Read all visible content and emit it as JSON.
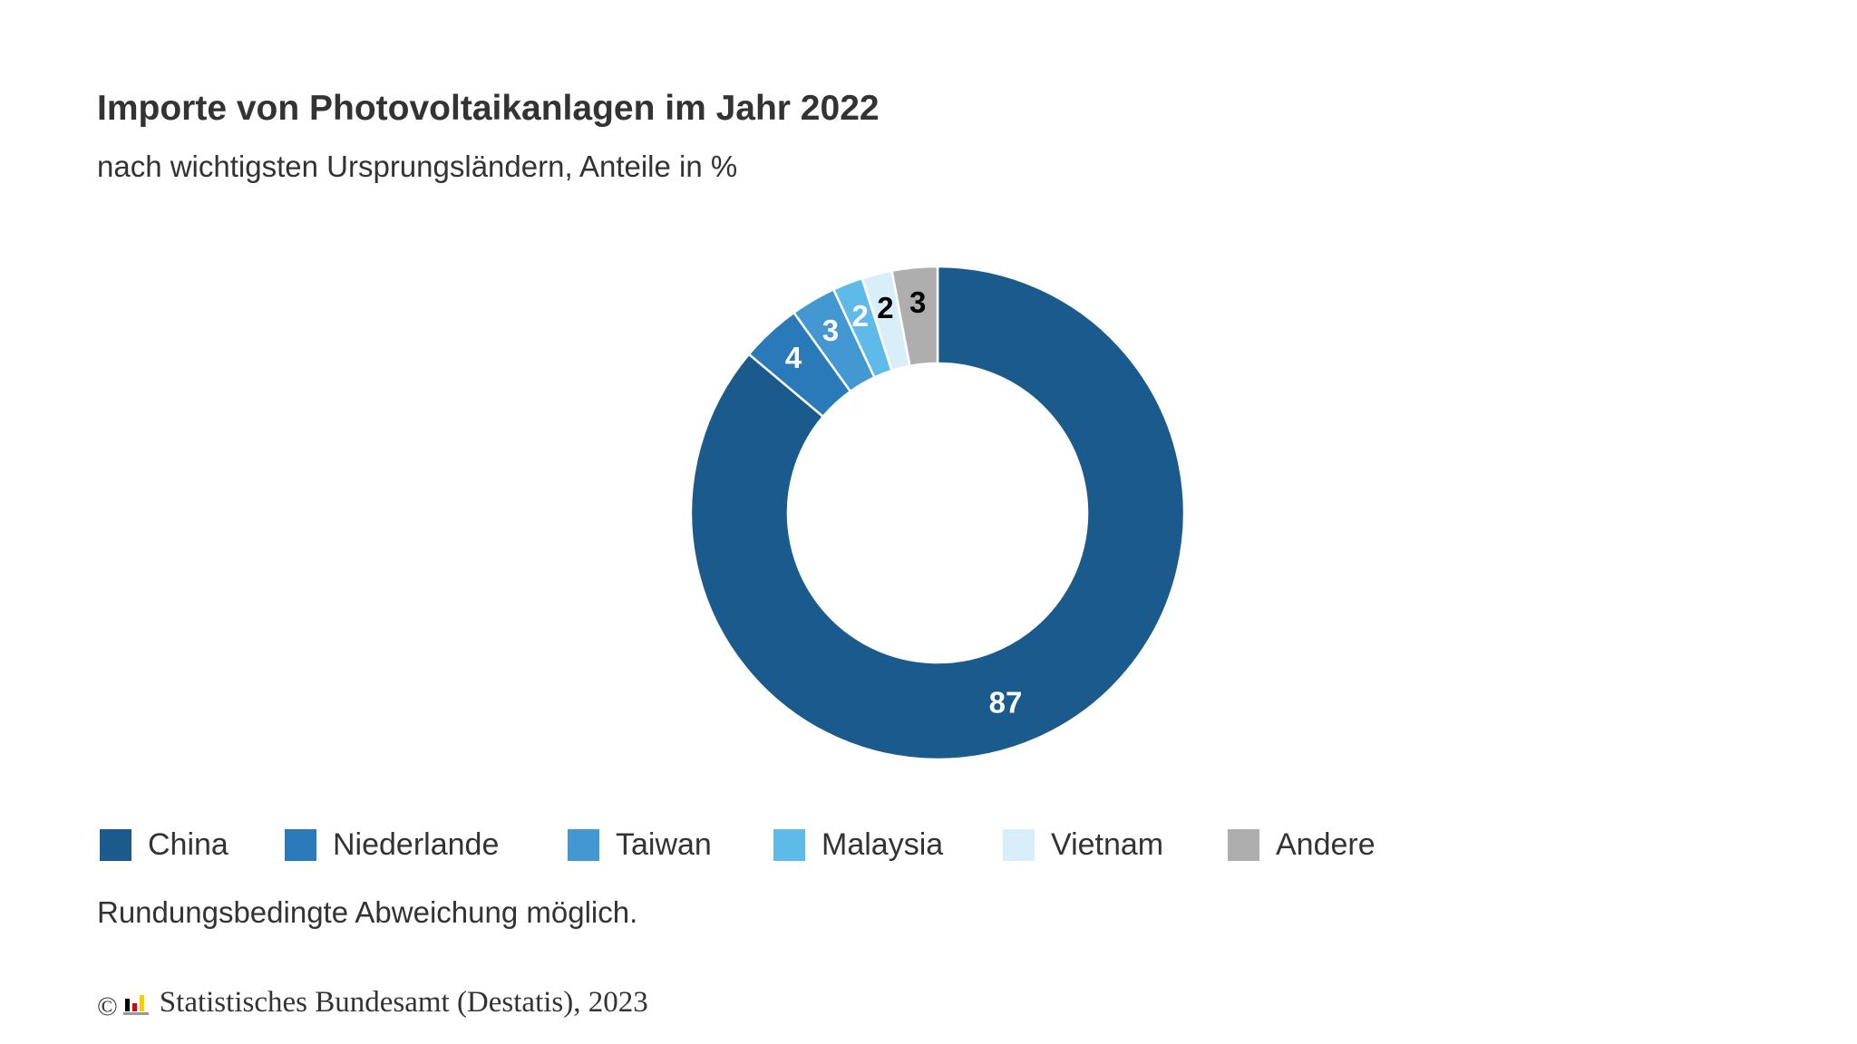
{
  "header": {
    "title": "Importe von Photovoltaikanlagen im Jahr 2022",
    "subtitle": "nach wichtigsten Ursprungsländern, Anteile in %"
  },
  "chart_data": {
    "type": "pie",
    "variant": "donut",
    "title": "Importe von Photovoltaikanlagen im Jahr 2022",
    "subtitle": "nach wichtigsten Ursprungsländern, Anteile in %",
    "categories": [
      "China",
      "Niederlande",
      "Taiwan",
      "Malaysia",
      "Vietnam",
      "Andere"
    ],
    "values": [
      87,
      4,
      3,
      2,
      2,
      3
    ],
    "colors": [
      "#1b5a8c",
      "#2a7aba",
      "#4398d1",
      "#5ebae8",
      "#d8eef9",
      "#aeaeae"
    ],
    "label_colors": [
      "#ffffff",
      "#ffffff",
      "#ffffff",
      "#ffffff",
      "#000000",
      "#000000"
    ],
    "legend_position": "bottom-left",
    "start": "12 o'clock, clockwise"
  },
  "note": "Rundungsbedingte Abweichung möglich.",
  "source": {
    "copyright_symbol": "©",
    "text": "Statistisches Bundesamt (Destatis), 2023",
    "logo_colors": [
      "#000000",
      "#dd0000",
      "#ffcc00",
      "#999999"
    ]
  }
}
